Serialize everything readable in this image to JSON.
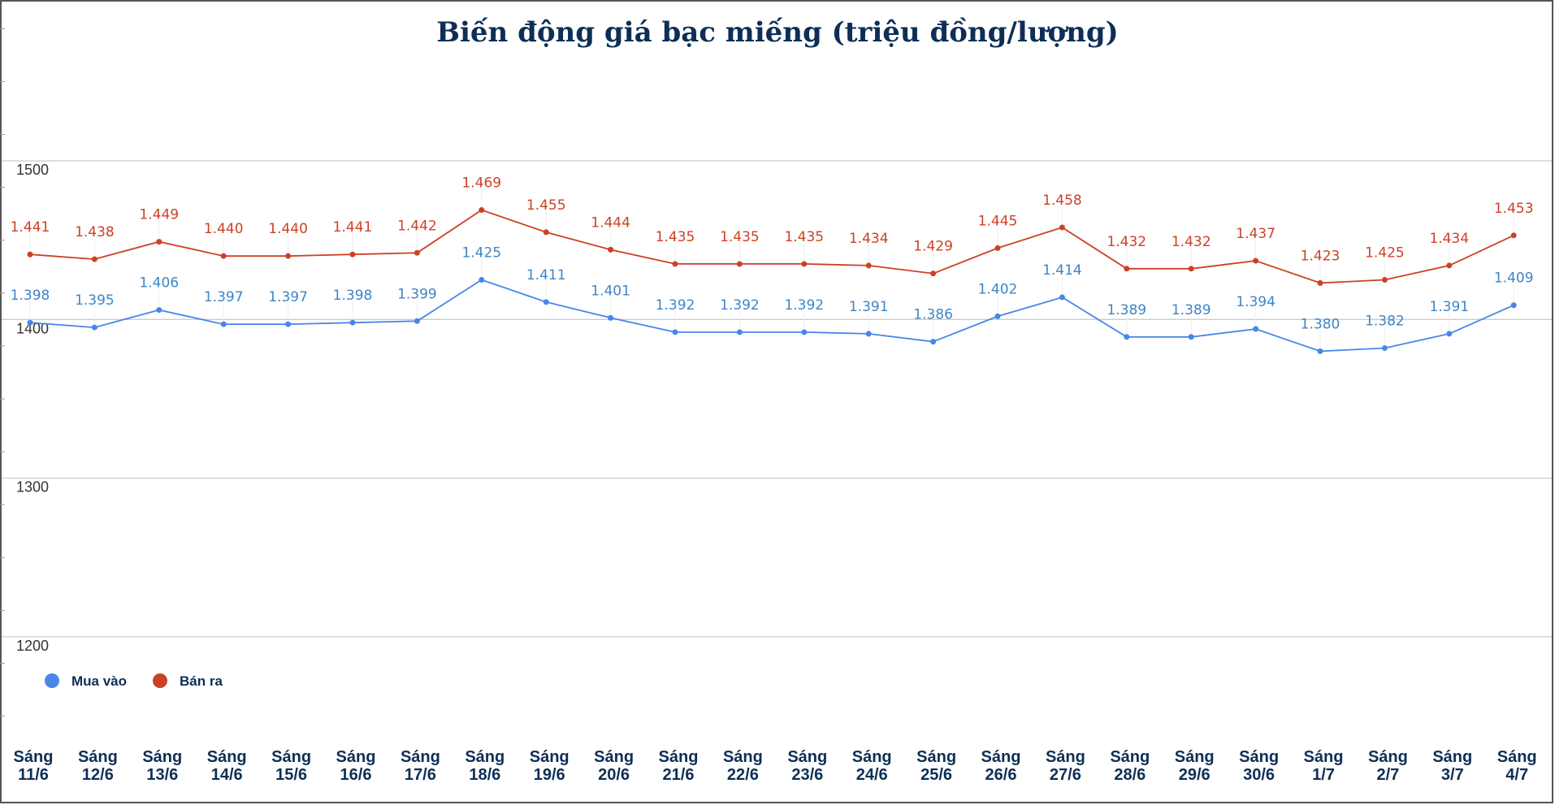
{
  "chart_data": {
    "type": "line",
    "title": "Biến động giá bạc miếng (triệu đồng/lượng)",
    "categories": [
      [
        "Sáng",
        "11/6"
      ],
      [
        "Sáng",
        "12/6"
      ],
      [
        "Sáng",
        "13/6"
      ],
      [
        "Sáng",
        "14/6"
      ],
      [
        "Sáng",
        "15/6"
      ],
      [
        "Sáng",
        "16/6"
      ],
      [
        "Sáng",
        "17/6"
      ],
      [
        "Sáng",
        "18/6"
      ],
      [
        "Sáng",
        "19/6"
      ],
      [
        "Sáng",
        "20/6"
      ],
      [
        "Sáng",
        "21/6"
      ],
      [
        "Sáng",
        "22/6"
      ],
      [
        "Sáng",
        "23/6"
      ],
      [
        "Sáng",
        "24/6"
      ],
      [
        "Sáng",
        "25/6"
      ],
      [
        "Sáng",
        "26/6"
      ],
      [
        "Sáng",
        "27/6"
      ],
      [
        "Sáng",
        "28/6"
      ],
      [
        "Sáng",
        "29/6"
      ],
      [
        "Sáng",
        "30/6"
      ],
      [
        "Sáng",
        "1/7"
      ],
      [
        "Sáng",
        "2/7"
      ],
      [
        "Sáng",
        "3/7"
      ],
      [
        "Sáng",
        "4/7"
      ]
    ],
    "series": [
      {
        "name": "Mua vào",
        "color": "#4a86e8",
        "label_color": "#3d85c6",
        "values": [
          1398,
          1395,
          1406,
          1397,
          1397,
          1398,
          1399,
          1425,
          1411,
          1401,
          1392,
          1392,
          1392,
          1391,
          1386,
          1402,
          1414,
          1389,
          1389,
          1394,
          1380,
          1382,
          1391,
          1409
        ],
        "labels": [
          "1.398",
          "1.395",
          "1.406",
          "1.397",
          "1.397",
          "1.398",
          "1.399",
          "1.425",
          "1.411",
          "1.401",
          "1.392",
          "1.392",
          "1.392",
          "1.391",
          "1.386",
          "1.402",
          "1.414",
          "1.389",
          "1.389",
          "1.394",
          "1.380",
          "1.382",
          "1.391",
          "1.409"
        ]
      },
      {
        "name": "Bán ra",
        "color": "#cc4125",
        "label_color": "#cc4125",
        "values": [
          1441,
          1438,
          1449,
          1440,
          1440,
          1441,
          1442,
          1469,
          1455,
          1444,
          1435,
          1435,
          1435,
          1434,
          1429,
          1445,
          1458,
          1432,
          1432,
          1437,
          1423,
          1425,
          1434,
          1453
        ],
        "labels": [
          "1.441",
          "1.438",
          "1.449",
          "1.440",
          "1.440",
          "1.441",
          "1.442",
          "1.469",
          "1.455",
          "1.444",
          "1.435",
          "1.435",
          "1.435",
          "1.434",
          "1.429",
          "1.445",
          "1.458",
          "1.432",
          "1.432",
          "1.437",
          "1.423",
          "1.425",
          "1.434",
          "1.453"
        ]
      }
    ],
    "y_ticks": [
      "1500",
      "1400",
      "1300",
      "1200"
    ],
    "y_tick_values": [
      1500,
      1400,
      1300,
      1200
    ],
    "ylim": [
      1150,
      1600
    ],
    "grid": true,
    "legend": "bottom-left",
    "colors": {
      "title": "#0d2f56",
      "axis_labels": "#0d2f56",
      "grid": "#cccccc"
    }
  }
}
